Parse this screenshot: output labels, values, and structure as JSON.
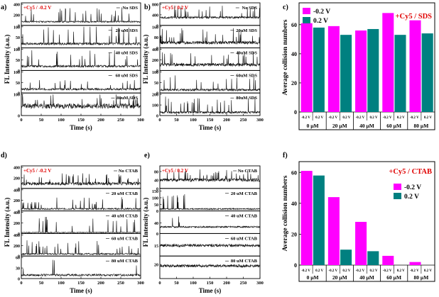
{
  "figure": {
    "panel_labels": [
      "a)",
      "b)",
      "c)",
      "d)",
      "e)",
      "f)"
    ],
    "time_axis_label": "Time (s)",
    "fl_axis_label": "FL Intensity (a.u.)",
    "collision_axis_label": "Average collision numbers"
  },
  "chart_data": [
    {
      "id": "a",
      "type": "line",
      "xlabel": "Time (s)",
      "ylabel": "FL Intensity (a.u.)",
      "xlim": [
        0,
        300
      ],
      "xticks": [
        0,
        50,
        100,
        150,
        200,
        250,
        300
      ],
      "header": "+Cy5 / -0.2 V",
      "subplots": [
        {
          "label": "No SDS",
          "ylim": [
            0,
            400
          ],
          "yticks": [
            0,
            200,
            400
          ],
          "baseline": 70,
          "noise": 15,
          "spikes": 22,
          "spike_max": 280,
          "seed": 11
        },
        {
          "label": "20 uM SDS",
          "ylim": [
            0,
            100
          ],
          "yticks": [
            0,
            50,
            100
          ],
          "baseline": 20,
          "noise": 6,
          "spikes": 20,
          "spike_max": 90,
          "seed": 12
        },
        {
          "label": "40 uM SDS",
          "ylim": [
            0,
            100
          ],
          "yticks": [
            0,
            50,
            100
          ],
          "baseline": 20,
          "noise": 5,
          "spikes": 18,
          "spike_max": 80,
          "seed": 13
        },
        {
          "label": "60 uM SDS",
          "ylim": [
            0,
            100
          ],
          "yticks": [
            0,
            50,
            100
          ],
          "baseline": 18,
          "noise": 5,
          "spikes": 14,
          "spike_max": 50,
          "seed": 14
        },
        {
          "label": "80uM SDS",
          "ylim": [
            0,
            100
          ],
          "yticks": [
            0,
            100
          ],
          "baseline": 45,
          "noise": 12,
          "spikes": 20,
          "spike_max": 75,
          "seed": 15
        }
      ]
    },
    {
      "id": "b",
      "type": "line",
      "xlabel": "Time (s)",
      "ylabel": "FL Intensity (a.u.)",
      "xlim": [
        0,
        300
      ],
      "xticks": [
        0,
        50,
        100,
        150,
        200,
        250,
        300
      ],
      "header": "+Cy5 / 0.2 V",
      "subplots": [
        {
          "label": "No SDS",
          "ylim": [
            0,
            800
          ],
          "yticks": [
            0,
            400,
            800
          ],
          "baseline": 300,
          "noise": 40,
          "spikes": 20,
          "spike_max": 450,
          "seed": 21
        },
        {
          "label": "20uM SDS",
          "ylim": [
            0,
            160
          ],
          "yticks": [
            0,
            80,
            160
          ],
          "baseline": 40,
          "noise": 12,
          "spikes": 22,
          "spike_max": 110,
          "seed": 22
        },
        {
          "label": "40uM SDS",
          "ylim": [
            0,
            400
          ],
          "yticks": [
            0,
            200,
            400
          ],
          "baseline": 110,
          "noise": 30,
          "spikes": 18,
          "spike_max": 260,
          "seed": 23
        },
        {
          "label": "60uM SDS",
          "ylim": [
            0,
            100
          ],
          "yticks": [
            0,
            50,
            100
          ],
          "baseline": 15,
          "noise": 5,
          "spikes": 14,
          "spike_max": 75,
          "seed": 24
        },
        {
          "label": "80uM SDS",
          "ylim": [
            0,
            200
          ],
          "yticks": [
            0,
            100,
            200
          ],
          "baseline": 30,
          "noise": 10,
          "spikes": 24,
          "spike_max": 150,
          "seed": 25
        }
      ]
    },
    {
      "id": "c",
      "type": "bar",
      "title": "+Cy5 / SDS",
      "categories": [
        "0 µM",
        "20 µM",
        "40 µM",
        "60 µM",
        "80 µM"
      ],
      "bar_labels": [
        "-0.2 V",
        "0.2 V"
      ],
      "series": [
        {
          "name": "-0.2 V",
          "color": "#ff00ff",
          "values": [
            61,
            59,
            56,
            68,
            63
          ]
        },
        {
          "name": "0.2 V",
          "color": "#008080",
          "values": [
            58,
            53,
            57,
            53,
            54
          ]
        }
      ],
      "ylabel": "Average collision numbers",
      "ylim": [
        0,
        75
      ],
      "yticks": [
        0,
        20,
        40,
        60
      ],
      "legend": "top-left"
    },
    {
      "id": "d",
      "type": "line",
      "xlabel": "Time (s)",
      "ylabel": "FL Intensity (a.u.)",
      "xlim": [
        0,
        300
      ],
      "xticks": [
        0,
        50,
        100,
        150,
        200,
        250,
        300
      ],
      "header": "+Cy5 / -0.2 V",
      "subplots": [
        {
          "label": "No CTAB",
          "ylim": [
            0,
            400
          ],
          "yticks": [
            0,
            200,
            400
          ],
          "baseline": 90,
          "noise": 30,
          "spikes": 30,
          "spike_max": 200,
          "seed": 31
        },
        {
          "label": "20 uM CTAB",
          "ylim": [
            0,
            400
          ],
          "yticks": [
            0,
            200,
            400
          ],
          "baseline": 40,
          "noise": 15,
          "spikes": 24,
          "spike_max": 220,
          "seed": 32
        },
        {
          "label": "40 uM CTAB",
          "ylim": [
            0,
            400
          ],
          "yticks": [
            0,
            200,
            400
          ],
          "baseline": 20,
          "noise": 8,
          "spikes": 18,
          "spike_max": 300,
          "seed": 33
        },
        {
          "label": "60 uM CTAB",
          "ylim": [
            0,
            400
          ],
          "yticks": [
            0,
            200,
            400
          ],
          "baseline": 40,
          "noise": 15,
          "spikes": 26,
          "spike_max": 260,
          "seed": 34
        },
        {
          "label": "80 uM CTAB",
          "ylim": [
            0,
            60
          ],
          "yticks": [
            0,
            30,
            60
          ],
          "baseline": 10,
          "noise": 3,
          "spikes": 4,
          "spike_max": 45,
          "seed": 35
        }
      ]
    },
    {
      "id": "e",
      "type": "line",
      "xlabel": "Time (s)",
      "ylabel": "FL Intensity (a.u.)",
      "xlim": [
        0,
        300
      ],
      "xticks": [
        0,
        50,
        100,
        150,
        200,
        250,
        300
      ],
      "header": "+Cy5 / 0.2 V",
      "subplots": [
        {
          "label": "No CTAB",
          "ylim": [
            0,
            100
          ],
          "yticks": [
            0,
            40,
            80
          ],
          "baseline": 40,
          "noise": 8,
          "spikes": 28,
          "spike_max": 50,
          "seed": 41
        },
        {
          "label": "20 uM CTAB",
          "ylim": [
            0,
            160
          ],
          "yticks": [
            0,
            50,
            100,
            150
          ],
          "baseline": 15,
          "noise": 5,
          "spikes": 10,
          "spike_max": 120,
          "seed": 42,
          "early_only": true
        },
        {
          "label": "40 uM CTAB",
          "ylim": [
            0,
            80
          ],
          "yticks": [
            0,
            40
          ],
          "baseline": 25,
          "noise": 3,
          "spikes": 3,
          "spike_max": 40,
          "seed": 43,
          "early_only": true
        },
        {
          "label": "60 uM CTAB",
          "ylim": [
            0,
            30
          ],
          "yticks": [
            15
          ],
          "baseline": 15,
          "noise": 2,
          "spikes": 0,
          "spike_max": 0,
          "seed": 44
        },
        {
          "label": "80 uM CTAB",
          "ylim": [
            0,
            30
          ],
          "yticks": [
            20
          ],
          "baseline": 18,
          "noise": 2,
          "spikes": 0,
          "spike_max": 0,
          "seed": 45
        }
      ]
    },
    {
      "id": "f",
      "type": "bar",
      "title": "+Cy5 / CTAB",
      "categories": [
        "0 µM",
        "20 µM",
        "40 µM",
        "60 µM",
        "80 µM"
      ],
      "bar_labels": [
        "-0.2 V",
        "0.2 V"
      ],
      "series": [
        {
          "name": "-0.2 V",
          "color": "#ff00ff",
          "values": [
            61,
            44,
            28,
            6,
            2
          ]
        },
        {
          "name": "0.2 V",
          "color": "#008080",
          "values": [
            58,
            10,
            9,
            0,
            0
          ]
        }
      ],
      "ylabel": "Average collision numbers",
      "ylim": [
        0,
        67
      ],
      "yticks": [
        0,
        20,
        40,
        60
      ],
      "legend": "right"
    }
  ]
}
